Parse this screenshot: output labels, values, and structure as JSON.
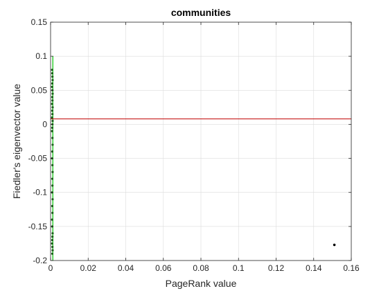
{
  "chart_data": {
    "type": "scatter",
    "title": "communities",
    "xlabel": "PageRank value",
    "ylabel": "Fiedler's eigenvector value",
    "xlim": [
      0,
      0.16
    ],
    "ylim": [
      -0.2,
      0.15
    ],
    "xticks": [
      0,
      0.02,
      0.04,
      0.06,
      0.08,
      0.1,
      0.12,
      0.14,
      0.16
    ],
    "xtick_labels": [
      "0",
      "0.02",
      "0.04",
      "0.06",
      "0.08",
      "0.1",
      "0.12",
      "0.14",
      "0.16"
    ],
    "yticks": [
      -0.2,
      -0.15,
      -0.1,
      -0.05,
      0,
      0.05,
      0.1,
      0.15
    ],
    "ytick_labels": [
      "-0.2",
      "-0.15",
      "-0.1",
      "-0.05",
      "0",
      "0.05",
      "0.1",
      "0.15"
    ],
    "grid": true,
    "threshold_line": {
      "y": 0.008,
      "color": "#c00000"
    },
    "vertical_segment": {
      "x": 0.0012,
      "y_range": [
        -0.2,
        0.1
      ],
      "color": "#00c000"
    },
    "series": [
      {
        "marker_color": "#1a5c1a",
        "x": [
          0.0008,
          0.0009,
          0.001,
          0.0011,
          0.0009,
          0.0008,
          0.001,
          0.0011,
          0.0009,
          0.001,
          0.0008,
          0.0011,
          0.0009,
          0.001,
          0.0008,
          0.0011,
          0.001,
          0.0009,
          0.0008,
          0.001,
          0.0011,
          0.0009,
          0.0008,
          0.001,
          0.0011,
          0.0009,
          0.001,
          0.0008,
          0.0011,
          0.0009,
          0.001,
          0.0008,
          0.0009,
          0.0011,
          0.001,
          0.0009,
          0.0008,
          0.001,
          0.0011,
          0.0009
        ],
        "y": [
          0.08,
          0.075,
          0.07,
          0.065,
          0.06,
          0.055,
          0.05,
          0.045,
          0.04,
          0.035,
          0.03,
          0.025,
          0.02,
          0.015,
          0.01,
          0.005,
          0.0,
          -0.005,
          -0.01,
          -0.02,
          -0.03,
          -0.04,
          -0.05,
          -0.06,
          -0.07,
          -0.08,
          -0.09,
          -0.1,
          -0.11,
          -0.12,
          -0.13,
          -0.14,
          -0.15,
          -0.16,
          -0.165,
          -0.17,
          -0.175,
          -0.18,
          -0.185,
          -0.19
        ]
      },
      {
        "marker_color": "#000000",
        "x": [
          0.151
        ],
        "y": [
          -0.177
        ]
      }
    ]
  }
}
